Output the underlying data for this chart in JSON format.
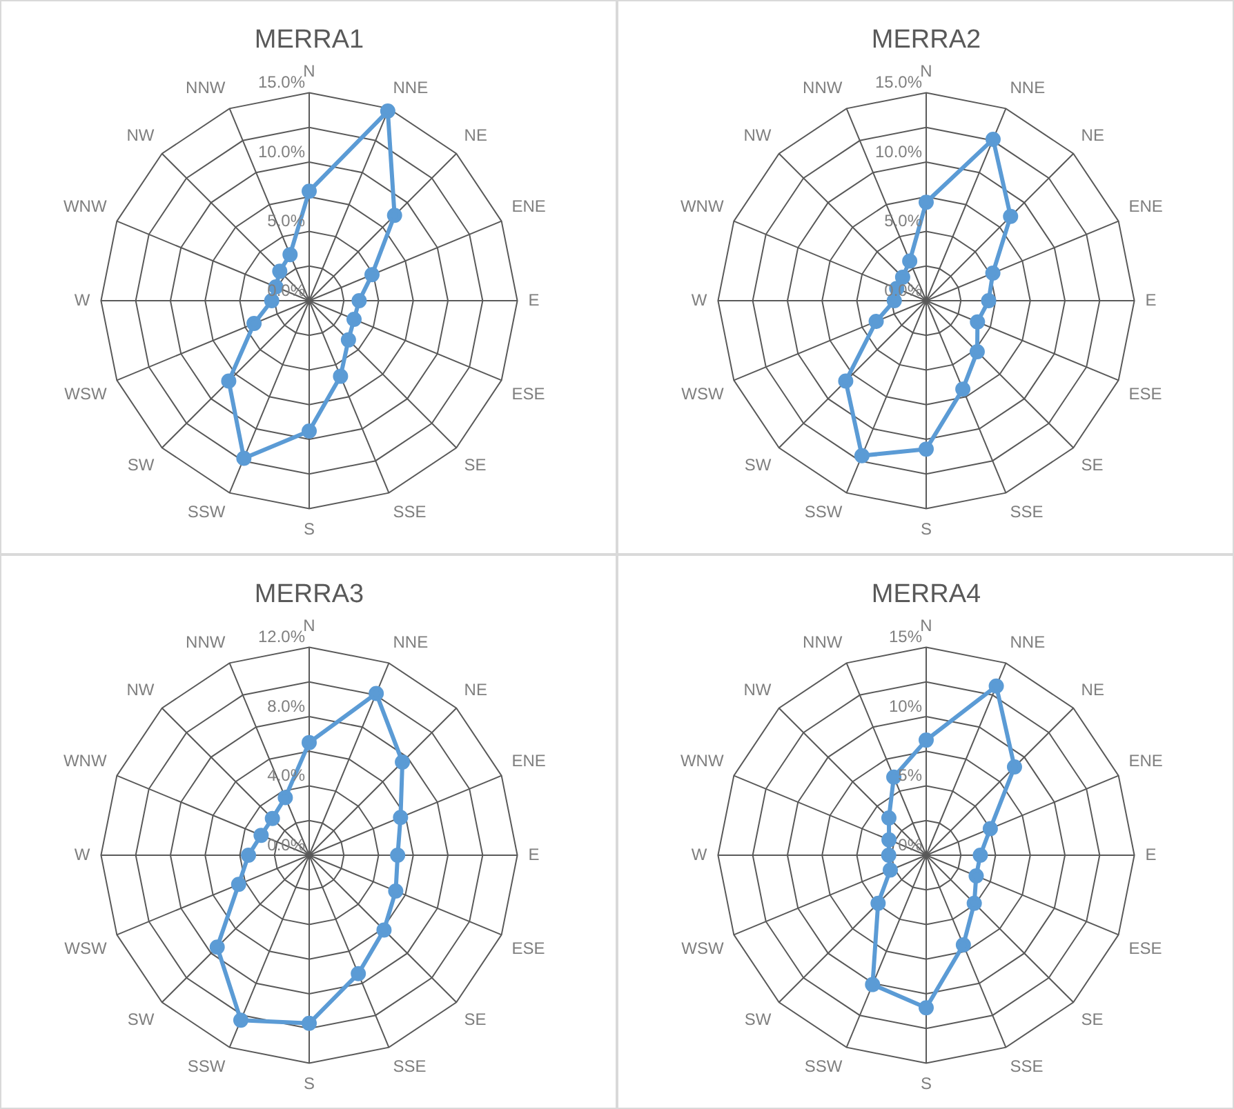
{
  "chart_data": [
    {
      "type": "radar",
      "title": "MERRA1",
      "categories": [
        "N",
        "NNE",
        "NE",
        "ENE",
        "E",
        "ESE",
        "SE",
        "SSE",
        "S",
        "SSW",
        "SW",
        "WSW",
        "W",
        "WNW",
        "NW",
        "NNW"
      ],
      "series": [
        {
          "color": "#5b9bd5",
          "values": [
            7.9,
            14.8,
            8.7,
            4.9,
            3.6,
            3.5,
            4.0,
            5.9,
            9.4,
            12.3,
            8.2,
            4.3,
            2.7,
            2.6,
            3.0,
            3.6
          ]
        }
      ],
      "ylim": [
        0,
        15
      ],
      "yticks": [
        {
          "value": 0,
          "label": "0.0%"
        },
        {
          "value": 5,
          "label": "5.0%"
        },
        {
          "value": 10,
          "label": "10.0%"
        },
        {
          "value": 15,
          "label": "15.0%"
        }
      ],
      "grid": true,
      "marker": "circle",
      "legend": false
    },
    {
      "type": "radar",
      "title": "MERRA2",
      "categories": [
        "N",
        "NNE",
        "NE",
        "ENE",
        "E",
        "ESE",
        "SE",
        "SSE",
        "S",
        "SSW",
        "SW",
        "WSW",
        "W",
        "WNW",
        "NW",
        "NNW"
      ],
      "series": [
        {
          "color": "#5b9bd5",
          "values": [
            7.1,
            12.6,
            8.6,
            5.2,
            4.5,
            4.0,
            5.2,
            6.9,
            10.7,
            12.1,
            8.2,
            3.9,
            2.3,
            2.3,
            2.4,
            3.1
          ]
        }
      ],
      "ylim": [
        0,
        15
      ],
      "yticks": [
        {
          "value": 0,
          "label": "0.0%"
        },
        {
          "value": 5,
          "label": "5.0%"
        },
        {
          "value": 10,
          "label": "10.0%"
        },
        {
          "value": 15,
          "label": "15.0%"
        }
      ],
      "grid": true,
      "marker": "circle",
      "legend": false
    },
    {
      "type": "radar",
      "title": "MERRA3",
      "categories": [
        "N",
        "NNE",
        "NE",
        "ENE",
        "E",
        "ESE",
        "SE",
        "SSE",
        "S",
        "SSW",
        "SW",
        "WSW",
        "W",
        "WNW",
        "NW",
        "NNW"
      ],
      "series": [
        {
          "color": "#5b9bd5",
          "values": [
            6.5,
            10.1,
            7.6,
            5.7,
            5.1,
            5.4,
            6.1,
            7.4,
            9.7,
            10.3,
            7.5,
            4.4,
            3.5,
            3.0,
            3.0,
            3.6
          ]
        }
      ],
      "ylim": [
        0,
        12
      ],
      "yticks": [
        {
          "value": 0,
          "label": "0.0%"
        },
        {
          "value": 4,
          "label": "4.0%"
        },
        {
          "value": 8,
          "label": "8.0%"
        },
        {
          "value": 12,
          "label": "12.0%"
        }
      ],
      "grid": true,
      "marker": "circle",
      "legend": false
    },
    {
      "type": "radar",
      "title": "MERRA4",
      "categories": [
        "N",
        "NNE",
        "NE",
        "ENE",
        "E",
        "ESE",
        "SE",
        "SSE",
        "S",
        "SSW",
        "SW",
        "WSW",
        "W",
        "WNW",
        "NW",
        "NNW"
      ],
      "series": [
        {
          "color": "#5b9bd5",
          "values": [
            8.3,
            13.2,
            9.0,
            5.0,
            3.9,
            3.9,
            4.9,
            7.0,
            11.0,
            10.1,
            4.9,
            2.8,
            2.7,
            2.9,
            3.8,
            6.1
          ]
        }
      ],
      "ylim": [
        0,
        15
      ],
      "yticks": [
        {
          "value": 0,
          "label": "0%"
        },
        {
          "value": 5,
          "label": "5%"
        },
        {
          "value": 10,
          "label": "10%"
        },
        {
          "value": 15,
          "label": "15%"
        }
      ],
      "grid": true,
      "marker": "circle",
      "legend": false
    }
  ]
}
